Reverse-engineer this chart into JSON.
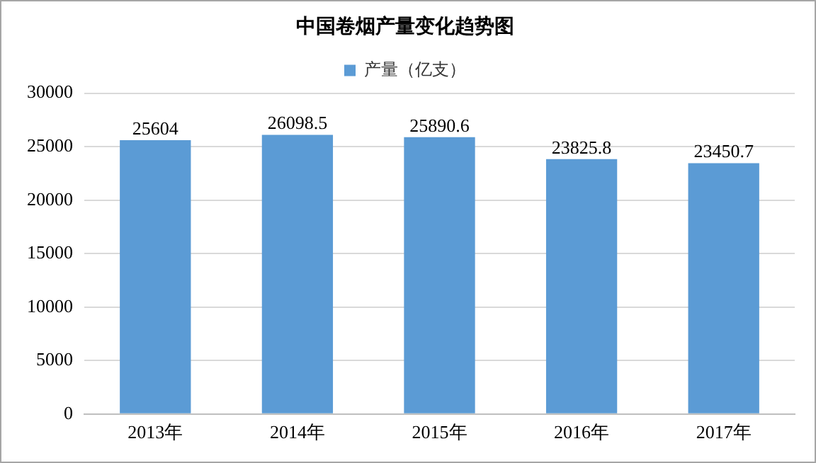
{
  "chart_data": {
    "type": "bar",
    "title": "中国卷烟产量变化趋势图",
    "categories": [
      "2013年",
      "2014年",
      "2015年",
      "2016年",
      "2017年"
    ],
    "series": [
      {
        "name": "产量（亿支）",
        "color": "#5b9bd5",
        "values": [
          25604,
          26098.5,
          25890.6,
          23825.8,
          23450.7
        ]
      }
    ],
    "ylim": [
      0,
      30000
    ],
    "yticks": [
      0,
      5000,
      10000,
      15000,
      20000,
      25000,
      30000
    ],
    "grid": "y",
    "legend": "top",
    "data_labels": true
  }
}
